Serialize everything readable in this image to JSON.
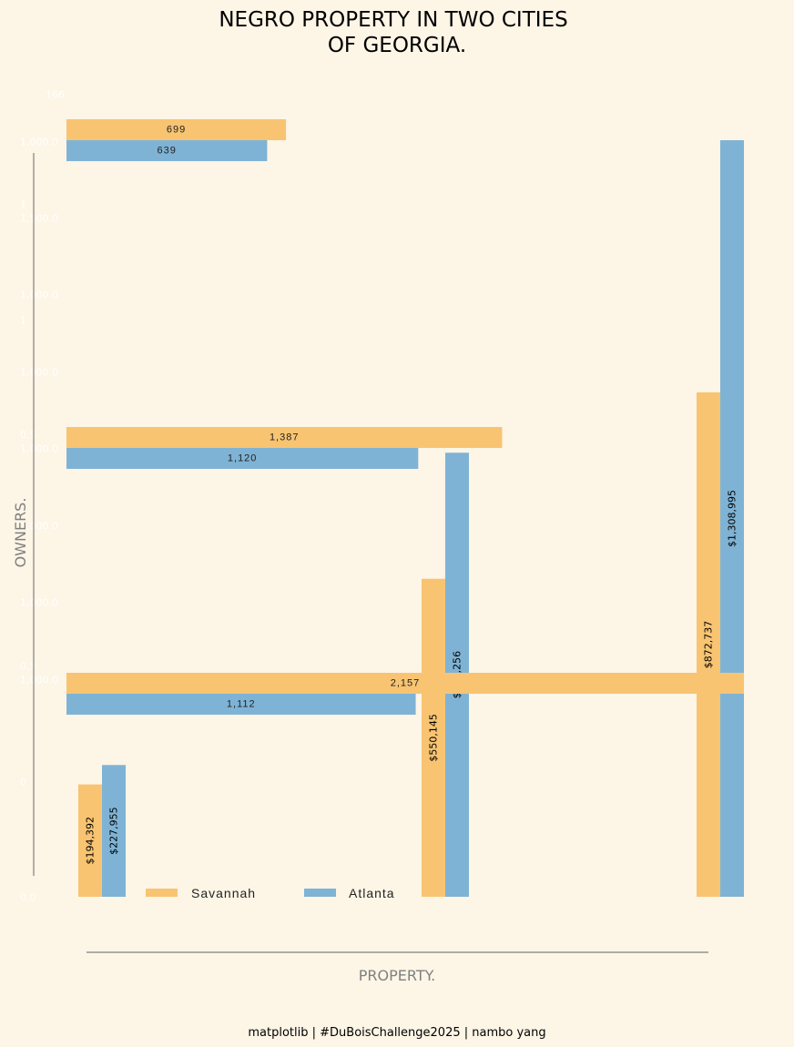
{
  "title_lines": [
    "NEGRO PROPERTY IN TWO CITIES",
    "OF GEORGIA."
  ],
  "footer": "matplotlib | #DuBoisChallenge2025 | nambo yang",
  "colors": {
    "background": "#fdf5e6",
    "savannah": "#f8c471",
    "atlanta": "#7fb3d5",
    "axis_line": "#808080"
  },
  "chart_data": [
    {
      "type": "bar",
      "orientation": "horizontal",
      "title": "",
      "ylabel": "OWNERS.",
      "categories": [
        "row-1",
        "row-2",
        "row-3"
      ],
      "series": [
        {
          "name": "Savannah",
          "values": [
            699,
            1387,
            2157
          ],
          "labels": [
            "699",
            "1,387",
            "2,157"
          ]
        },
        {
          "name": "Atlanta",
          "values": [
            639,
            1120,
            1112
          ],
          "labels": [
            "639",
            "1,120",
            "1,112"
          ]
        }
      ],
      "faint_ticks": [
        "166",
        "1,000.0",
        "1",
        "1,500.0",
        "1,000.0",
        "1",
        "1,000.0",
        "0.5",
        "1,000.0",
        "1,000.0",
        "1,000.0",
        "0.5",
        "1,000.0",
        "0",
        "0.0"
      ]
    },
    {
      "type": "bar",
      "orientation": "vertical",
      "title": "",
      "xlabel": "PROPERTY.",
      "categories": [
        "group-1",
        "group-2",
        "group-3"
      ],
      "ylim": [
        0,
        1308995
      ],
      "series": [
        {
          "name": "Savannah",
          "values": [
            194392,
            550145,
            872737
          ],
          "labels": [
            "$194,392",
            "$550,145",
            "$872,737"
          ]
        },
        {
          "name": "Atlanta",
          "values": [
            227955,
            768256,
            1308995
          ],
          "labels": [
            "$227,955",
            "$768,256",
            "$1,308,995"
          ]
        }
      ],
      "legend": {
        "placement": "bottom-left",
        "entries": [
          "Savannah",
          "Atlanta"
        ]
      }
    }
  ]
}
